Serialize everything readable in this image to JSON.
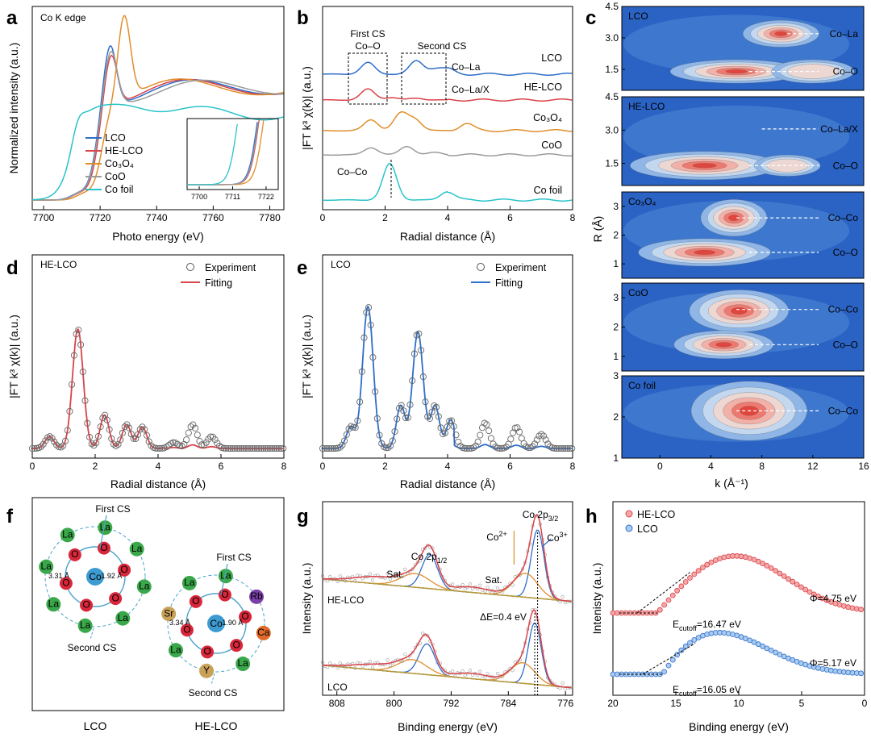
{
  "colors": {
    "LCO": "#2f6ec9",
    "HE-LCO": "#d9434a",
    "Co3O4": "#e08e2b",
    "CoO": "#9b9b9b",
    "Co foil": "#29c3c9",
    "fit_gold": "#b79a3a",
    "fit_blue": "#2f6ec9",
    "fit_orange": "#e08e2b"
  },
  "figure": {
    "panel_labels": [
      "a",
      "b",
      "c",
      "d",
      "e",
      "f",
      "g",
      "h"
    ]
  },
  "chart_data": [
    {
      "id": "a",
      "type": "line",
      "title": "Co K edge",
      "xlabel": "Photo energy (eV)",
      "ylabel": "Normalized intensity (a.u.)",
      "xlim": [
        7696,
        7785
      ],
      "xticks": [
        "7700",
        "7720",
        "7740",
        "7760",
        "7780"
      ],
      "series": [
        {
          "name": "LCO",
          "edge": 7718.5,
          "peak": 7723.5,
          "peak_height": 1.55,
          "osc": 0.0
        },
        {
          "name": "HE-LCO",
          "edge": 7719.0,
          "peak": 7723.8,
          "peak_height": 1.47,
          "osc": 0.02
        },
        {
          "name": "Co3O4",
          "edge": 7720.5,
          "peak": 7728.5,
          "peak_height": 1.75,
          "osc": 0.05
        },
        {
          "name": "CoO",
          "edge": 7718.8,
          "peak": 7723.8,
          "peak_height": 1.48,
          "osc": -0.04
        },
        {
          "name": "Co foil",
          "edge": 7710.0,
          "peak": 7730.0,
          "peak_height": 0.88,
          "osc": 0.0
        }
      ],
      "legend": [
        "LCO",
        "HE-LCO",
        "Co3O4",
        "CoO",
        "Co foil"
      ],
      "legend_display": [
        "LCO",
        "HE-LCO",
        "Co₃O₄",
        "CoO",
        "Co foil"
      ],
      "inset": {
        "xticks": [
          "7700",
          "7711",
          "7722"
        ]
      }
    },
    {
      "id": "b",
      "type": "line",
      "xlabel": "Radial distance (Å)",
      "ylabel": "|FT k³ χ(k)| (a.u.)",
      "xlim": [
        0,
        8
      ],
      "xticks": [
        "0",
        "2",
        "4",
        "6",
        "8"
      ],
      "series": [
        {
          "name": "LCO",
          "label": "LCO",
          "peaks": [
            [
              1.45,
              0.48
            ],
            [
              3.0,
              0.55
            ],
            [
              3.6,
              0.2
            ],
            [
              4.0,
              0.2
            ]
          ]
        },
        {
          "name": "HE-LCO",
          "label": "HE-LCO",
          "peaks": [
            [
              1.45,
              0.45
            ],
            [
              2.2,
              0.1
            ],
            [
              3.0,
              0.08
            ]
          ]
        },
        {
          "name": "Co3O4",
          "label": "Co₃O₄",
          "peaks": [
            [
              1.55,
              0.45
            ],
            [
              2.5,
              0.7
            ],
            [
              2.95,
              0.45
            ],
            [
              4.6,
              0.3
            ]
          ]
        },
        {
          "name": "CoO",
          "label": "CoO",
          "peaks": [
            [
              1.55,
              0.3
            ],
            [
              2.7,
              0.35
            ],
            [
              3.6,
              0.1
            ]
          ]
        },
        {
          "name": "Co foil",
          "label": "Co foil",
          "peaks": [
            [
              2.15,
              1.5
            ],
            [
              4.0,
              0.35
            ]
          ]
        }
      ],
      "annotations": [
        "First CS",
        "Co–O",
        "Second CS",
        "Co–La",
        "Co–La/X",
        "Co–Co"
      ]
    },
    {
      "id": "c",
      "type": "heatmap",
      "xlabel": "k (Å⁻¹)",
      "ylabel": "R (Å)",
      "xlim": [
        -3,
        16
      ],
      "xticks": [
        "0",
        "4",
        "8",
        "12",
        "16"
      ],
      "subplots": [
        {
          "name": "LCO",
          "ylim": [
            0.5,
            4.5
          ],
          "yticks": [
            "1.5",
            "3.0",
            "4.5"
          ],
          "annotations": [
            "Co–La",
            "Co–O"
          ],
          "blobs": [
            [
              9.5,
              3.2,
              2.3,
              0.4,
              1.0
            ],
            [
              6.0,
              1.4,
              4.0,
              0.35,
              0.75
            ],
            [
              12,
              1.4,
              2.5,
              0.35,
              0.3
            ]
          ]
        },
        {
          "name": "HE-LCO",
          "ylim": [
            0.5,
            4.5
          ],
          "yticks": [
            "1.5",
            "3.0",
            "4.5"
          ],
          "annotations": [
            "Co–La/X",
            "Co–O"
          ],
          "blobs": [
            [
              3.5,
              1.4,
              4.5,
              0.4,
              0.95
            ],
            [
              10,
              1.4,
              2,
              0.3,
              0.3
            ]
          ]
        },
        {
          "name": "Co3O4",
          "ylim": [
            0.5,
            3.5
          ],
          "yticks": [
            "1",
            "2",
            "3"
          ],
          "annotations": [
            "Co–Co",
            "Co–O"
          ],
          "blobs": [
            [
              5.8,
              2.6,
              2,
              0.4,
              0.9
            ],
            [
              3.5,
              1.4,
              4,
              0.3,
              0.85
            ]
          ]
        },
        {
          "name": "CoO",
          "ylim": [
            0.5,
            3.5
          ],
          "yticks": [
            "1",
            "2",
            "3"
          ],
          "annotations": [
            "Co–Co",
            "Co–O"
          ],
          "blobs": [
            [
              6.2,
              2.55,
              3,
              0.45,
              0.95
            ],
            [
              5,
              1.4,
              3,
              0.3,
              0.5
            ]
          ]
        },
        {
          "name": "Co foil",
          "ylim": [
            1,
            3
          ],
          "yticks": [
            "1",
            "2",
            "3"
          ],
          "annotations": [
            "Co–Co"
          ],
          "blobs": [
            [
              7,
              2.15,
              3.5,
              0.45,
              1.0
            ]
          ]
        }
      ],
      "subplot_titles": [
        "LCO",
        "HE-LCO",
        "Co₃O₄",
        "CoO",
        "Co foil"
      ]
    },
    {
      "id": "d",
      "type": "line",
      "title": "HE-LCO",
      "xlabel": "Radial distance (Å)",
      "ylabel": "|FT k³ χ(k)| (a.u.)",
      "xlim": [
        0,
        8
      ],
      "xticks": [
        "0",
        "2",
        "4",
        "6",
        "8"
      ],
      "legend": [
        "Experiment",
        "Fitting"
      ],
      "peaks": [
        [
          0.55,
          0.1
        ],
        [
          1.45,
          1.0
        ],
        [
          2.3,
          0.28
        ],
        [
          3.0,
          0.2
        ],
        [
          3.5,
          0.18
        ],
        [
          4.5,
          0.05
        ],
        [
          5.1,
          0.2
        ],
        [
          5.7,
          0.1
        ]
      ]
    },
    {
      "id": "e",
      "type": "line",
      "title": "LCO",
      "xlabel": "Radial distance (Å)",
      "ylabel": "|FT k³ χ(k)| (a.u.)",
      "xlim": [
        0,
        8
      ],
      "xticks": [
        "0",
        "2",
        "4",
        "6",
        "8"
      ],
      "legend": [
        "Experiment",
        "Fitting"
      ],
      "peaks": [
        [
          0.9,
          0.15
        ],
        [
          1.45,
          1.0
        ],
        [
          2.5,
          0.3
        ],
        [
          3.05,
          0.82
        ],
        [
          3.6,
          0.3
        ],
        [
          4.1,
          0.2
        ],
        [
          5.2,
          0.18
        ],
        [
          6.2,
          0.15
        ],
        [
          7.0,
          0.1
        ]
      ]
    },
    {
      "id": "g",
      "type": "line",
      "xlabel": "Binding energy (eV)",
      "ylabel": "Intensity (a.u.)",
      "xlim": [
        810,
        775
      ],
      "xticks": [
        "808",
        "800",
        "792",
        "784",
        "776"
      ],
      "series": [
        {
          "name": "HE-LCO",
          "peaks": [
            [
              779.9,
              1.0,
              0.9
            ],
            [
              781.6,
              0.35,
              1.7
            ],
            [
              795.0,
              0.5,
              1.1
            ],
            [
              797.0,
              0.2,
              2
            ],
            [
              802.5,
              0.1,
              3
            ],
            [
              789.0,
              0.08,
              2.5
            ]
          ]
        },
        {
          "name": "LCO",
          "peaks": [
            [
              780.3,
              0.9,
              0.9
            ],
            [
              782.0,
              0.3,
              1.7
            ],
            [
              795.4,
              0.45,
              1.1
            ],
            [
              797.4,
              0.2,
              2
            ],
            [
              802.5,
              0.08,
              3
            ],
            [
              789.0,
              0.08,
              2.5
            ]
          ]
        }
      ],
      "annotations": [
        "Co 2p3/2",
        "Co3+",
        "Co2+",
        "Co 2p1/2",
        "Sat.",
        "Sat.",
        "ΔE=0.4 eV",
        "HE-LCO",
        "LCO"
      ]
    },
    {
      "id": "h",
      "type": "scatter",
      "xlabel": "Binding energy (eV)",
      "ylabel": "Intenisty (a.u.)",
      "xlim": [
        20,
        0
      ],
      "xticks": [
        "20",
        "15",
        "10",
        "5",
        "0"
      ],
      "legend": [
        "HE-LCO",
        "LCO"
      ],
      "series": [
        {
          "name": "HE-LCO",
          "cutoff": 16.47,
          "work_function": 4.75,
          "label_cutoff": "E",
          "label_cutoff_sub": "cutoff",
          "label_cutoff_val": "=16.47 eV",
          "label_phi": "Φ=4.75 eV"
        },
        {
          "name": "LCO",
          "cutoff": 16.05,
          "work_function": 5.17,
          "label_cutoff": "E",
          "label_cutoff_sub": "cutoff",
          "label_cutoff_val": "=16.05 eV",
          "label_phi": "Φ=5.17 eV"
        }
      ]
    }
  ],
  "schematic_f": {
    "left": {
      "center": "Co",
      "title": "LCO",
      "first_cs": "First CS",
      "second_cs": "Second CS",
      "d1": "1.92 Å",
      "d2": "3.31 Å",
      "inner": [
        "O",
        "O",
        "O",
        "O",
        "O",
        "O"
      ],
      "outer": [
        "La",
        "La",
        "La",
        "La",
        "La",
        "La",
        "La",
        "La"
      ]
    },
    "right": {
      "center": "Co",
      "title": "HE-LCO",
      "first_cs": "First CS",
      "second_cs": "Second CS",
      "d1": "1.90 Å",
      "d2": "3.34 Å",
      "inner": [
        "O",
        "O",
        "O",
        "O",
        "O",
        "O"
      ],
      "outer": [
        "La",
        "Rb",
        "Ca",
        "La",
        "Y",
        "La",
        "Sr",
        "La"
      ]
    }
  }
}
